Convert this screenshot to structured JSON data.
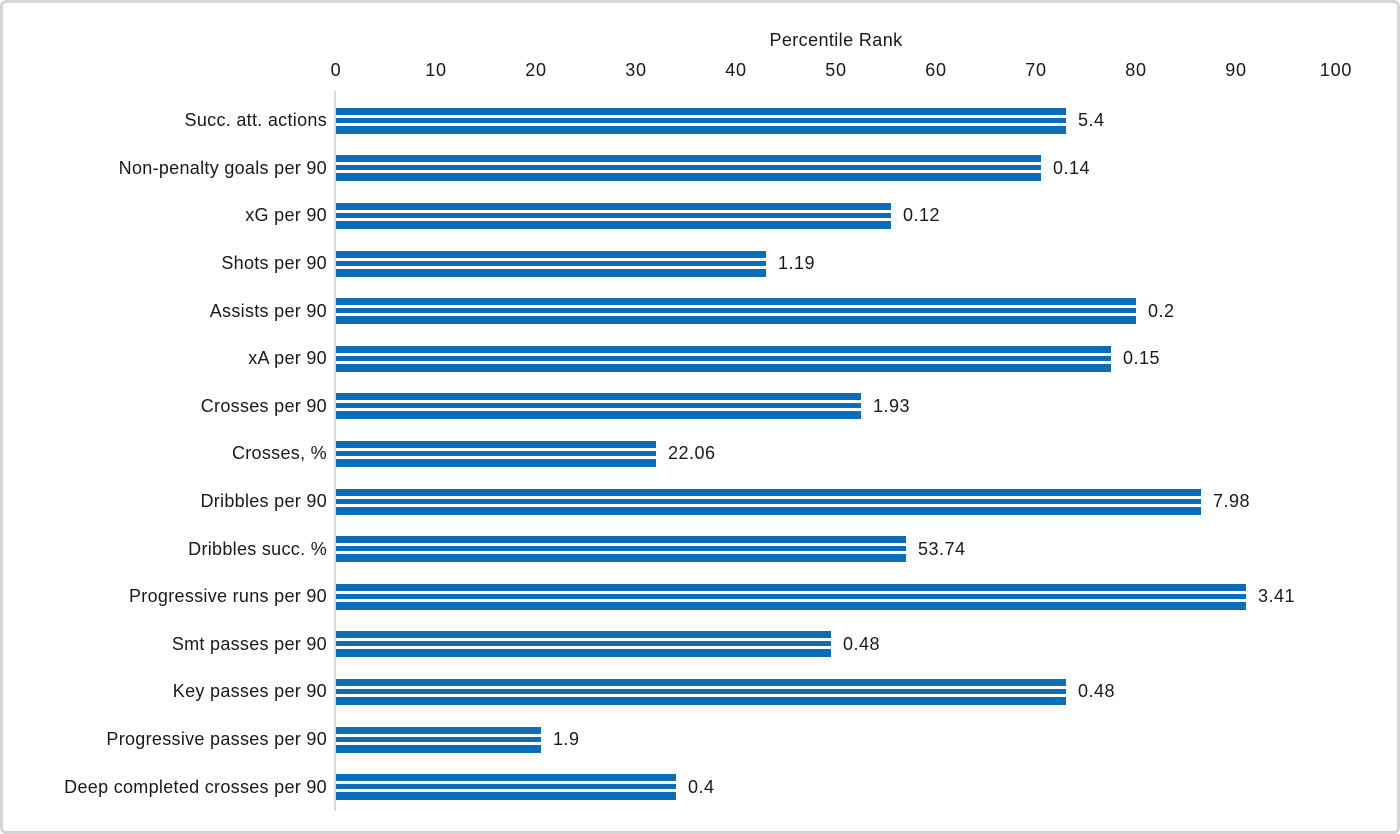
{
  "chart_data": {
    "type": "bar",
    "orientation": "horizontal",
    "title": "Percentile Rank",
    "xlabel": "Percentile Rank",
    "ylabel": "",
    "xlim": [
      0,
      100
    ],
    "x_ticks": [
      0,
      10,
      20,
      30,
      40,
      50,
      60,
      70,
      80,
      90,
      100
    ],
    "grid": false,
    "legend": "none",
    "bar_color": "#0b6cb7",
    "axis_line_color": "#d9d9d9",
    "categories": [
      "Succ. att. actions",
      "Non-penalty goals per 90",
      "xG per 90",
      "Shots per 90",
      "Assists per 90",
      "xA per 90",
      "Crosses per 90",
      "Crosses, %",
      "Dribbles per 90",
      "Dribbles succ. %",
      "Progressive runs per 90",
      "Smt passes per 90",
      "Key passes per 90",
      "Progressive passes per 90",
      "Deep completed crosses per 90"
    ],
    "series": [
      {
        "name": "Percentile Rank",
        "values": [
          73,
          70.5,
          55.5,
          43,
          80,
          77.5,
          52.5,
          32,
          86.5,
          57,
          91,
          49.5,
          73,
          20.5,
          34
        ]
      }
    ],
    "data_labels": [
      "5.4",
      "0.14",
      "0.12",
      "1.19",
      "0.2",
      "0.15",
      "1.93",
      "22.06",
      "7.98",
      "53.74",
      "3.41",
      "0.48",
      "0.48",
      "1.9",
      "0.4"
    ]
  }
}
